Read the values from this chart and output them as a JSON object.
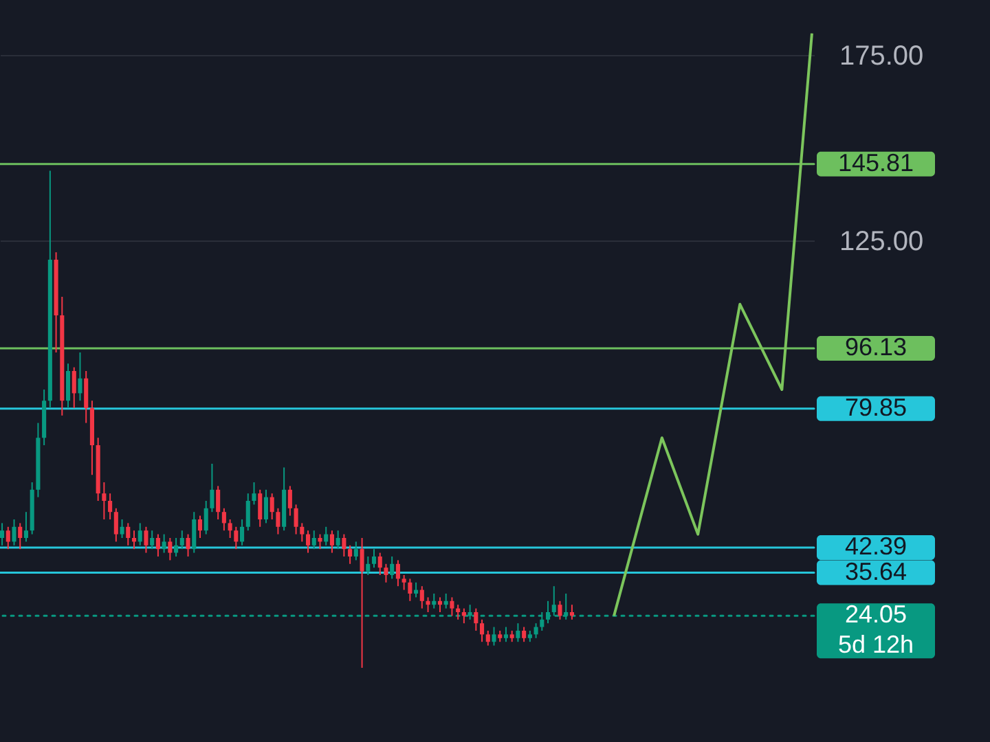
{
  "chart_data": {
    "type": "candlestick",
    "categories": [
      null,
      null,
      null,
      null,
      null,
      null,
      null,
      null,
      null,
      null,
      null,
      null,
      null,
      null,
      null,
      null,
      null,
      null,
      null,
      null,
      null,
      null,
      null,
      null,
      null,
      null,
      null,
      null,
      null,
      null,
      null,
      null,
      null,
      null,
      null,
      null,
      null,
      null,
      null,
      null,
      null,
      null,
      null,
      null,
      null,
      null,
      null,
      null,
      null,
      null,
      null,
      null,
      null,
      null,
      null,
      null,
      null,
      null,
      null,
      null,
      null,
      null,
      null,
      null,
      null,
      null,
      null,
      null,
      null,
      null,
      null,
      null,
      null,
      null,
      null,
      null,
      null,
      null,
      null,
      null,
      null,
      null,
      null,
      null,
      null,
      null,
      null,
      null,
      null,
      null,
      null,
      null,
      null,
      null,
      null,
      null,
      null,
      null,
      null,
      null,
      null,
      null,
      null,
      null,
      null,
      null,
      null,
      null,
      null,
      null,
      null,
      null,
      null,
      null,
      null,
      null,
      null,
      null,
      null,
      null,
      null,
      null,
      null,
      null,
      null,
      null,
      null,
      null,
      null,
      null,
      null,
      null,
      null,
      null,
      null,
      null
    ],
    "ohlc": [
      [
        45,
        49,
        43,
        47
      ],
      [
        47,
        48,
        42,
        44
      ],
      [
        44,
        50,
        43,
        48
      ],
      [
        48,
        49,
        42,
        45
      ],
      [
        45,
        52,
        44,
        47
      ],
      [
        47,
        60,
        46,
        58
      ],
      [
        58,
        76,
        56,
        72
      ],
      [
        72,
        85,
        70,
        82
      ],
      [
        82,
        144,
        80,
        120
      ],
      [
        120,
        122,
        95,
        105
      ],
      [
        105,
        110,
        78,
        82
      ],
      [
        82,
        92,
        80,
        90
      ],
      [
        90,
        91,
        80,
        84
      ],
      [
        84,
        95,
        82,
        88
      ],
      [
        88,
        90,
        76,
        80
      ],
      [
        80,
        82,
        62,
        70
      ],
      [
        70,
        72,
        55,
        57
      ],
      [
        57,
        60,
        50,
        55
      ],
      [
        55,
        57,
        50,
        52
      ],
      [
        52,
        53,
        44,
        46
      ],
      [
        46,
        50,
        45,
        48
      ],
      [
        48,
        49,
        43,
        45
      ],
      [
        45,
        47,
        42,
        44
      ],
      [
        44,
        49,
        43,
        47
      ],
      [
        47,
        48,
        41,
        43
      ],
      [
        43,
        47,
        42,
        45
      ],
      [
        45,
        46,
        40,
        42
      ],
      [
        42,
        46,
        41,
        44
      ],
      [
        44,
        45,
        39,
        41
      ],
      [
        41,
        45,
        40,
        43
      ],
      [
        43,
        47,
        42,
        45
      ],
      [
        45,
        46,
        40,
        42
      ],
      [
        42,
        52,
        41,
        50
      ],
      [
        50,
        51,
        45,
        47
      ],
      [
        47,
        55,
        46,
        53
      ],
      [
        53,
        65,
        52,
        58
      ],
      [
        58,
        59,
        50,
        52
      ],
      [
        52,
        53,
        47,
        49
      ],
      [
        49,
        50,
        45,
        47
      ],
      [
        47,
        48,
        42,
        44
      ],
      [
        44,
        50,
        43,
        48
      ],
      [
        48,
        57,
        47,
        55
      ],
      [
        55,
        60,
        54,
        57
      ],
      [
        57,
        58,
        48,
        50
      ],
      [
        50,
        58,
        49,
        56
      ],
      [
        56,
        57,
        50,
        52
      ],
      [
        52,
        53,
        46,
        48
      ],
      [
        48,
        64,
        47,
        58
      ],
      [
        58,
        59,
        51,
        53
      ],
      [
        53,
        54,
        46,
        48
      ],
      [
        48,
        49,
        44,
        46
      ],
      [
        46,
        47,
        41,
        43
      ],
      [
        43,
        47,
        42,
        45
      ],
      [
        45,
        46,
        42,
        44
      ],
      [
        44,
        48,
        43,
        46
      ],
      [
        46,
        47,
        41,
        43
      ],
      [
        43,
        47,
        42,
        45
      ],
      [
        45,
        46,
        40,
        42
      ],
      [
        42,
        43,
        38,
        40
      ],
      [
        40,
        44,
        39,
        42
      ],
      [
        42,
        45,
        10,
        36
      ],
      [
        36,
        40,
        35,
        38
      ],
      [
        38,
        42,
        37,
        40
      ],
      [
        40,
        41,
        35,
        37
      ],
      [
        37,
        38,
        33,
        35
      ],
      [
        35,
        40,
        34,
        38
      ],
      [
        38,
        39,
        32,
        34
      ],
      [
        34,
        35,
        31,
        33
      ],
      [
        33,
        34,
        28,
        30
      ],
      [
        30,
        33,
        29,
        31
      ],
      [
        31,
        32,
        26,
        28
      ],
      [
        28,
        29,
        25,
        27
      ],
      [
        27,
        30,
        26,
        28
      ],
      [
        28,
        29,
        25,
        27
      ],
      [
        27,
        30,
        26,
        28
      ],
      [
        28,
        29,
        24,
        26
      ],
      [
        26,
        27,
        23,
        25
      ],
      [
        25,
        26,
        22,
        24
      ],
      [
        24,
        27,
        23,
        25
      ],
      [
        25,
        26,
        20,
        22
      ],
      [
        22,
        23,
        17,
        19
      ],
      [
        19,
        20,
        16,
        17
      ],
      [
        17,
        21,
        16,
        19
      ],
      [
        19,
        20,
        17,
        18
      ],
      [
        18,
        21,
        17,
        19
      ],
      [
        19,
        20,
        17,
        18
      ],
      [
        18,
        22,
        17,
        20
      ],
      [
        20,
        21,
        17,
        18
      ],
      [
        18,
        20,
        17,
        19
      ],
      [
        19,
        22,
        18,
        21
      ],
      [
        21,
        25,
        20,
        23
      ],
      [
        23,
        28,
        22,
        25
      ],
      [
        25,
        32,
        24,
        27
      ],
      [
        27,
        28,
        23,
        24
      ],
      [
        24,
        30,
        23,
        25
      ],
      [
        25,
        27,
        23,
        24.05
      ],
      null,
      null,
      null,
      null,
      null,
      null,
      null,
      null,
      null,
      null,
      null,
      null,
      null,
      null,
      null,
      null,
      null,
      null,
      null,
      null,
      null,
      null,
      null,
      null,
      null,
      null,
      null,
      null,
      null,
      null,
      null,
      null,
      null,
      null,
      null,
      null,
      null,
      null,
      null,
      null
    ],
    "series": [
      {
        "type": "line",
        "color": "#7cc55c",
        "values": [
          null,
          null,
          null,
          null,
          null,
          null,
          null,
          null,
          null,
          null,
          null,
          null,
          null,
          null,
          null,
          null,
          null,
          null,
          null,
          null,
          null,
          null,
          null,
          null,
          null,
          null,
          null,
          null,
          null,
          null,
          null,
          null,
          null,
          null,
          null,
          null,
          null,
          null,
          null,
          null,
          null,
          null,
          null,
          null,
          null,
          null,
          null,
          null,
          null,
          null,
          null,
          null,
          null,
          null,
          null,
          null,
          null,
          null,
          null,
          null,
          null,
          null,
          null,
          null,
          null,
          null,
          null,
          null,
          null,
          null,
          null,
          null,
          null,
          null,
          null,
          null,
          null,
          null,
          null,
          null,
          null,
          null,
          null,
          null,
          null,
          null,
          null,
          null,
          null,
          null,
          null,
          null,
          null,
          null,
          null,
          null,
          null,
          null,
          null,
          null,
          null,
          null,
          24,
          null,
          null,
          null,
          null,
          null,
          null,
          null,
          72,
          null,
          null,
          null,
          null,
          null,
          46,
          null,
          null,
          null,
          null,
          null,
          null,
          108,
          null,
          null,
          null,
          null,
          null,
          null,
          85,
          null,
          null,
          null,
          null,
          181
        ]
      }
    ],
    "ylim": [
      -10,
      190
    ],
    "yticks": [
      {
        "value": 125,
        "label": "125.00"
      },
      {
        "value": 175,
        "label": "175.00"
      }
    ],
    "tick_labels": "y",
    "grid": "y",
    "ref_lines": [
      {
        "axis": "y",
        "value": 145.81,
        "label": "145.81",
        "color": "#6dbf5e"
      },
      {
        "axis": "y",
        "value": 96.13,
        "label": "96.13",
        "color": "#6dbf5e"
      },
      {
        "axis": "y",
        "value": 79.85,
        "label": "79.85",
        "color": "#26c6da"
      },
      {
        "axis": "y",
        "value": 42.39,
        "label": "42.39",
        "color": "#26c6da"
      },
      {
        "axis": "y",
        "value": 35.64,
        "label": "35.64",
        "color": "#26c6da"
      },
      {
        "axis": "y",
        "value": 24.05,
        "label": "24.05",
        "color": "#089981",
        "line_style": "dotted"
      }
    ],
    "annotations": [
      "5d 12h"
    ]
  }
}
